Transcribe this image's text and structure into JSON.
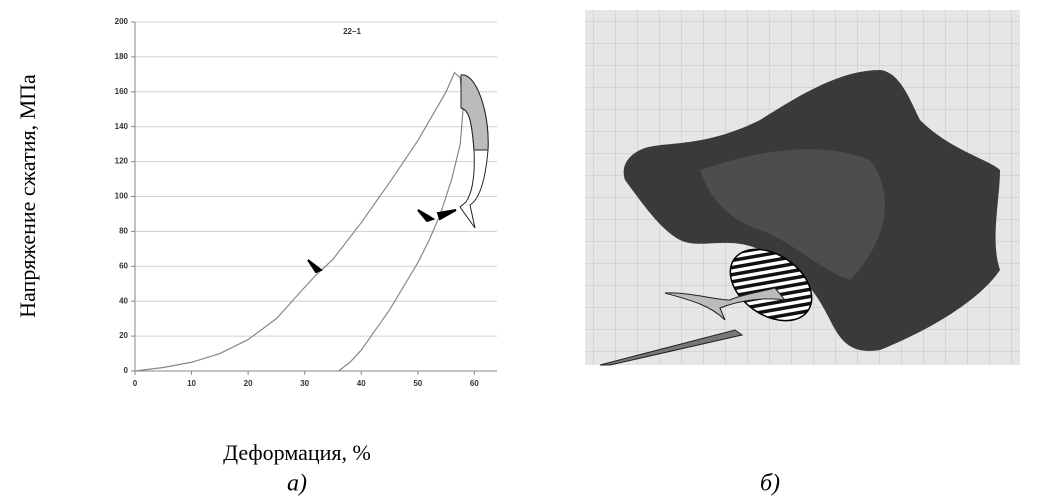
{
  "chart_data": {
    "type": "line",
    "title": "22–1",
    "x_label": "Деформация, %",
    "y_label": "Напряжение сжатия, МПа",
    "x": [
      0,
      5,
      10,
      15,
      20,
      25,
      30,
      32,
      35,
      40,
      45,
      50,
      55,
      56.5,
      57.5,
      58,
      57.5,
      56,
      54,
      52,
      50,
      45,
      40,
      38,
      36
    ],
    "values": [
      0,
      2,
      5,
      10,
      18,
      30,
      48,
      55,
      64,
      85,
      108,
      132,
      160,
      171,
      168,
      150,
      130,
      110,
      90,
      75,
      62,
      35,
      12,
      5,
      0
    ],
    "color": "#888888",
    "xlim": [
      0,
      64
    ],
    "xticks": [
      0,
      10,
      20,
      30,
      40,
      50,
      60
    ],
    "ylim": [
      0,
      200
    ],
    "yticks": [
      0,
      20,
      40,
      60,
      80,
      100,
      120,
      140,
      160,
      180,
      200
    ],
    "grid": true
  },
  "captions": {
    "a": "а)",
    "b": "б)"
  }
}
